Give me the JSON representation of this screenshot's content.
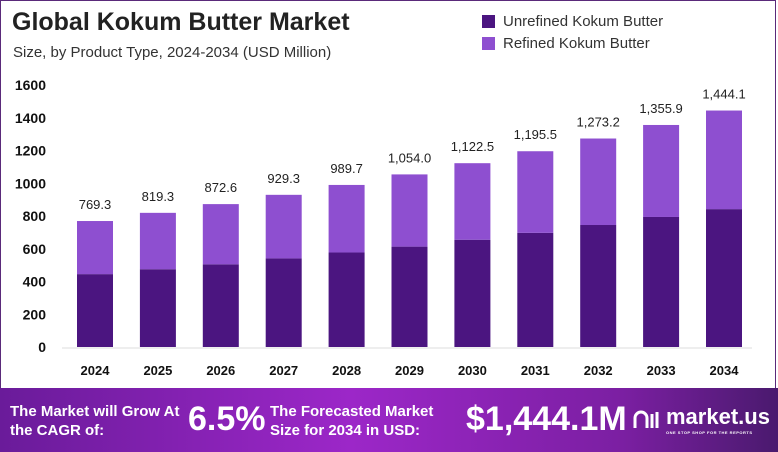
{
  "chart_data": {
    "type": "bar",
    "stacked": true,
    "title": "Global Kokum Butter Market",
    "subtitle": "Size, by Product Type, 2024-2034 (USD Million)",
    "categories": [
      "2024",
      "2025",
      "2026",
      "2027",
      "2028",
      "2029",
      "2030",
      "2031",
      "2032",
      "2033",
      "2034"
    ],
    "series": [
      {
        "name": "Unrefined Kokum Butter",
        "color": "#4b1580",
        "values": [
          445,
          475,
          505,
          541,
          577,
          613,
          655,
          697,
          745,
          794,
          842
        ]
      },
      {
        "name": "Refined Kokum Butter",
        "color": "#8e4fd0",
        "values": [
          324.3,
          344.3,
          367.6,
          388.3,
          412.7,
          441.0,
          467.5,
          498.5,
          528.2,
          561.9,
          602.1
        ]
      }
    ],
    "totals": [
      769.3,
      819.3,
      872.6,
      929.3,
      989.7,
      1054.0,
      1122.5,
      1195.5,
      1273.2,
      1355.9,
      1444.1
    ],
    "total_labels": [
      "769.3",
      "819.3",
      "872.6",
      "929.3",
      "989.7",
      "1,054.0",
      "1,122.5",
      "1,195.5",
      "1,273.2",
      "1,355.9",
      "1,444.1"
    ],
    "yticks": [
      0,
      200,
      400,
      600,
      800,
      1000,
      1200,
      1400,
      1600
    ],
    "ylim": [
      0,
      1600
    ],
    "legend": "top-right",
    "grid": false
  },
  "footer": {
    "cagr_text": "The Market will Grow At the CAGR of:",
    "cagr_value": "6.5%",
    "forecast_text": "The Forecasted Market Size for 2034 in USD:",
    "forecast_value": "$1,444.1M",
    "logo_text": "market.us",
    "logo_tagline": "ONE STOP SHOP FOR THE REPORTS"
  }
}
